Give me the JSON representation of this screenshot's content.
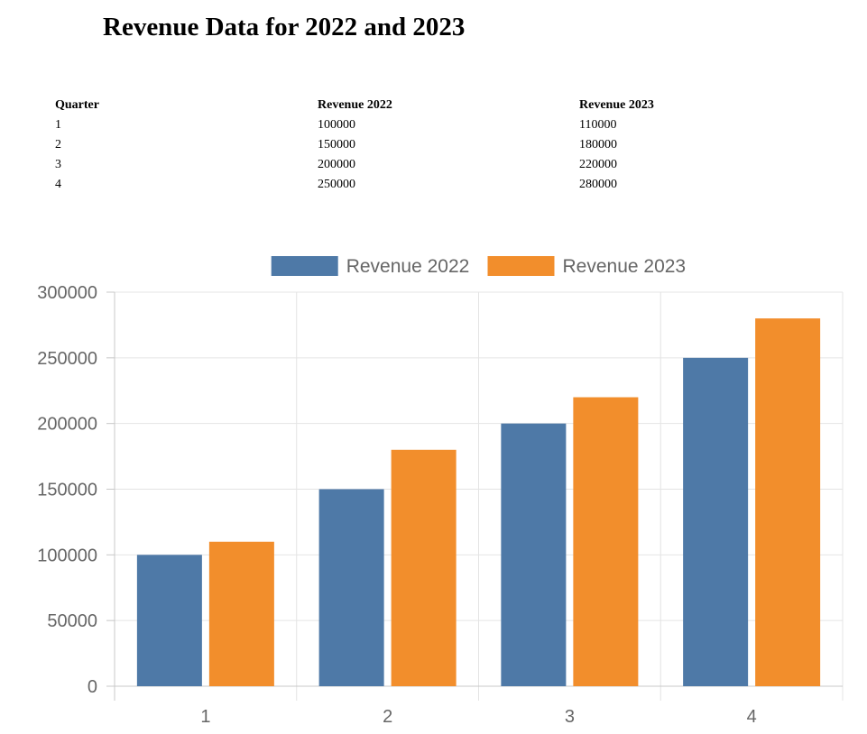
{
  "page": {
    "title": "Revenue Data for 2022 and 2023"
  },
  "table": {
    "headers": [
      "Quarter",
      "Revenue 2022",
      "Revenue 2023"
    ],
    "rows": [
      [
        "1",
        "100000",
        "110000"
      ],
      [
        "2",
        "150000",
        "180000"
      ],
      [
        "3",
        "200000",
        "220000"
      ],
      [
        "4",
        "250000",
        "280000"
      ]
    ]
  },
  "chart_data": {
    "type": "bar",
    "categories": [
      "1",
      "2",
      "3",
      "4"
    ],
    "series": [
      {
        "name": "Revenue 2022",
        "values": [
          100000,
          150000,
          200000,
          250000
        ],
        "color": "#4e79a7"
      },
      {
        "name": "Revenue 2023",
        "values": [
          110000,
          180000,
          220000,
          280000
        ],
        "color": "#f28e2c"
      }
    ],
    "title": "",
    "xlabel": "",
    "ylabel": "",
    "ylim": [
      0,
      300000
    ],
    "yticks": [
      0,
      50000,
      100000,
      150000,
      200000,
      250000,
      300000
    ],
    "grid": true,
    "legend_position": "top-center"
  }
}
